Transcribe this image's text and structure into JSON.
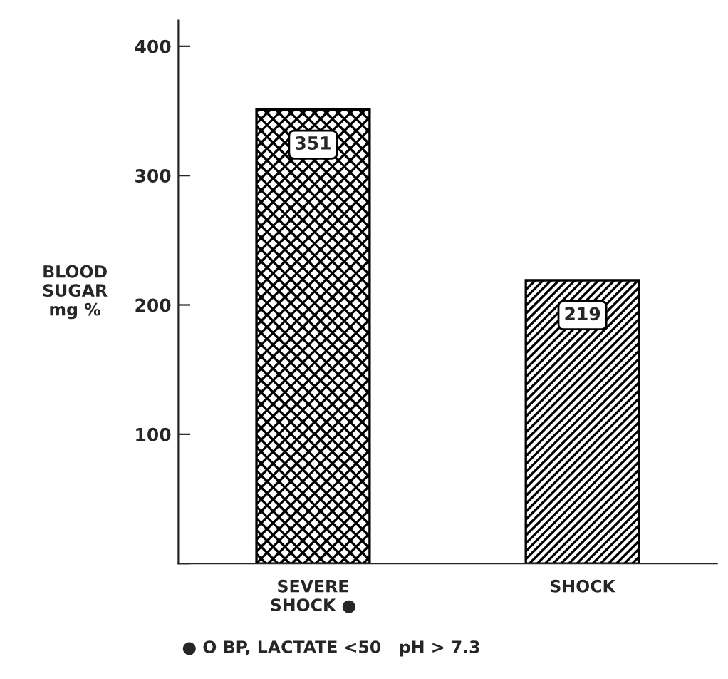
{
  "chart_data": {
    "type": "bar",
    "categories": [
      "SEVERE\nSHOCK ●",
      "SHOCK"
    ],
    "values": [
      351,
      219
    ],
    "colors": [
      "#000000",
      "#000000"
    ],
    "data_labels": true,
    "ylabel": "BLOOD\nSUGAR\nmg %",
    "ylim": [
      0,
      420
    ],
    "yticks": [
      {
        "value": 0,
        "label": null
      },
      100,
      200,
      300,
      400
    ],
    "annotations": [
      "● O BP, LACTATE <50   pH > 7.3"
    ],
    "grid": false
  }
}
